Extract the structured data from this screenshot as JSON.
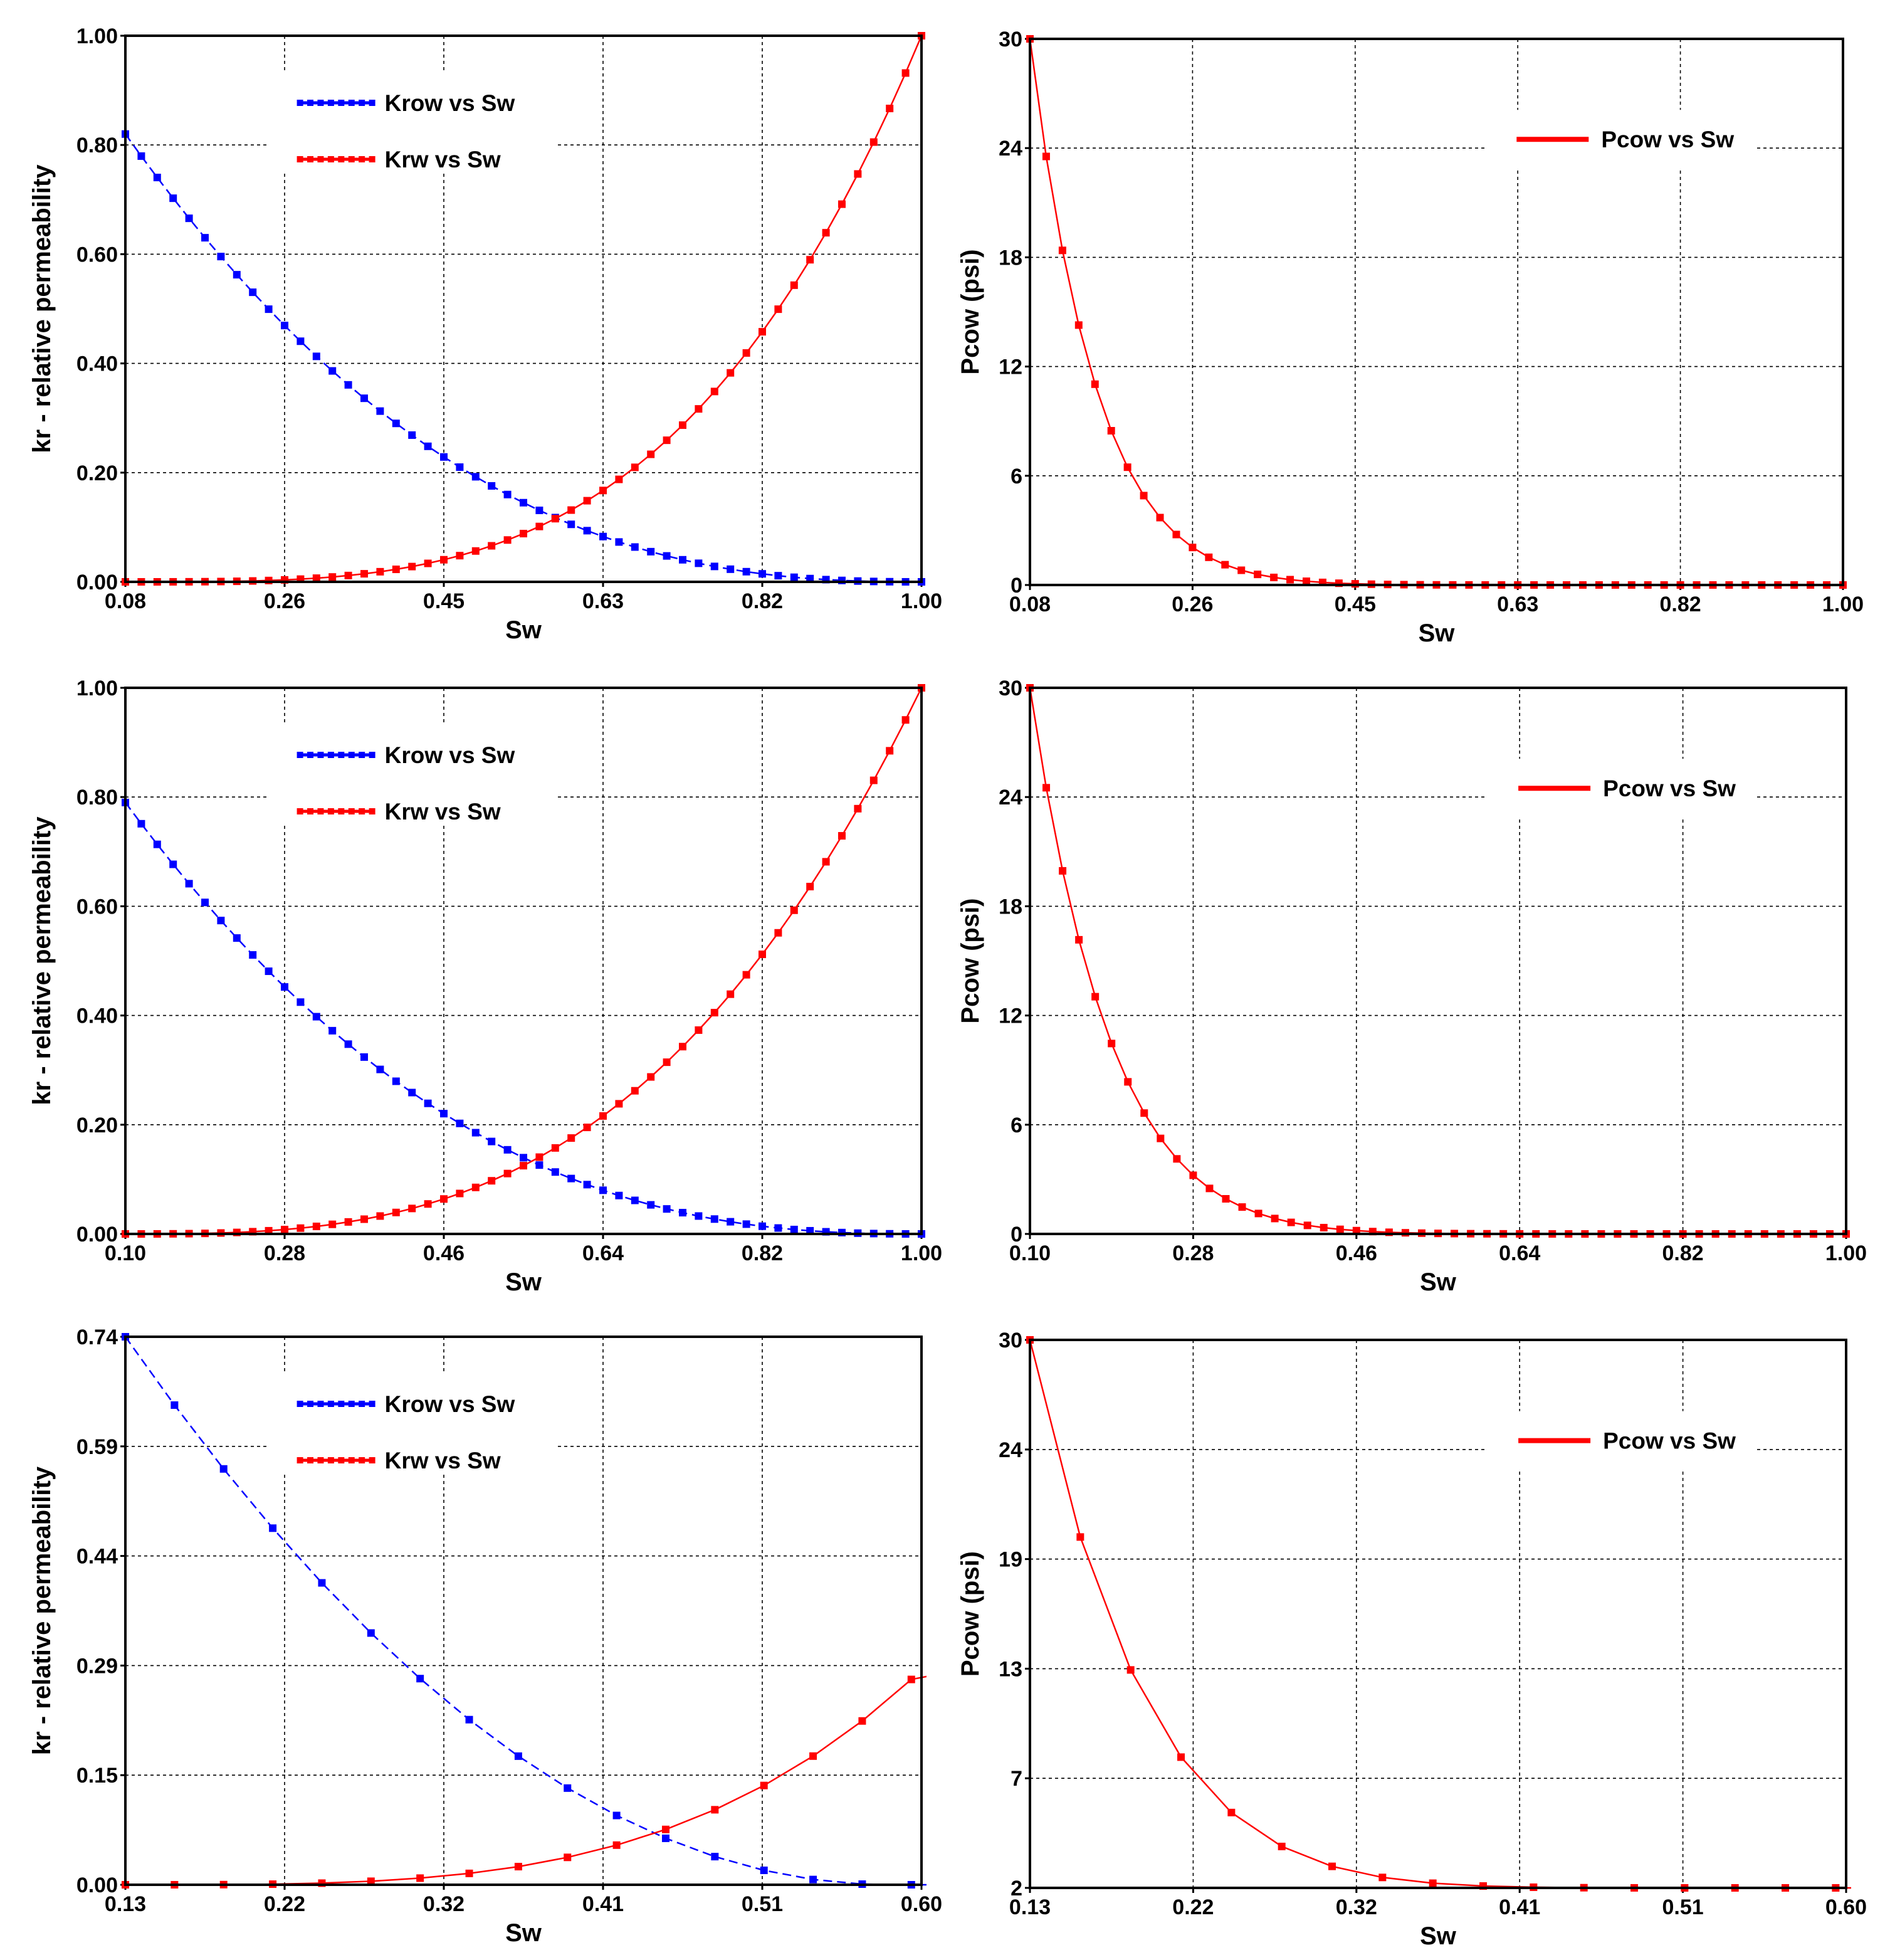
{
  "figure": {
    "colors": {
      "krow": "#0000ff",
      "krw": "#ff0000",
      "pcow": "#ff0000",
      "grid": "#000000",
      "frame": "#000000"
    }
  },
  "chart_data": [
    {
      "id": "kr1",
      "type": "line",
      "title": "",
      "xlabel": "Sw",
      "ylabel": "kr - relative permeability",
      "xlim": [
        0.08,
        1.0
      ],
      "ylim": [
        0,
        1.0
      ],
      "xticks": [
        "0.08",
        "0.26",
        "0.45",
        "0.63",
        "0.82",
        "1.00"
      ],
      "yticks": [
        "0.00",
        "0.20",
        "0.40",
        "0.60",
        "0.80",
        "1.00"
      ],
      "grid": true,
      "legend_position": "top-center",
      "series": [
        {
          "name": "Krow vs Sw",
          "color": "#0000ff",
          "dashed": true,
          "model": {
            "kind": "corey",
            "swc": 0.08,
            "swmax": 1.0,
            "k": 0.82,
            "n": 2.5,
            "side": "oil",
            "points": 51
          }
        },
        {
          "name": "Krw vs Sw",
          "color": "#ff0000",
          "dashed": false,
          "model": {
            "kind": "corey",
            "swc": 0.08,
            "swmax": 1.0,
            "k": 1.0,
            "n": 3.5,
            "side": "water",
            "points": 51
          }
        }
      ]
    },
    {
      "id": "pc1",
      "type": "line",
      "title": "",
      "xlabel": "Sw",
      "ylabel": "Pcow (psi)",
      "xlim": [
        0.08,
        1.0
      ],
      "ylim": [
        0,
        30
      ],
      "xticks": [
        "0.08",
        "0.26",
        "0.45",
        "0.63",
        "0.82",
        "1.00"
      ],
      "yticks": [
        "0",
        "6",
        "12",
        "18",
        "24",
        "30"
      ],
      "grid": true,
      "legend_position": "top-right",
      "series": [
        {
          "name": "Pcow vs Sw",
          "color": "#ff0000",
          "dashed": false,
          "model": {
            "kind": "pc",
            "swc": 0.08,
            "swmax": 1.0,
            "pmax": 30,
            "pmin": 0,
            "n": 12,
            "points": 51
          }
        }
      ]
    },
    {
      "id": "kr2",
      "type": "line",
      "title": "",
      "xlabel": "Sw",
      "ylabel": "kr - relative permeability",
      "xlim": [
        0.1,
        1.0
      ],
      "ylim": [
        0,
        1.0
      ],
      "xticks": [
        "0.10",
        "0.28",
        "0.46",
        "0.64",
        "0.82",
        "1.00"
      ],
      "yticks": [
        "0.00",
        "0.20",
        "0.40",
        "0.60",
        "0.80",
        "1.00"
      ],
      "grid": true,
      "legend_position": "top-center",
      "series": [
        {
          "name": "Krow vs Sw",
          "color": "#0000ff",
          "dashed": true,
          "model": {
            "kind": "corey",
            "swc": 0.1,
            "swmax": 1.0,
            "k": 0.79,
            "n": 2.5,
            "side": "oil",
            "points": 51
          }
        },
        {
          "name": "Krw vs Sw",
          "color": "#ff0000",
          "dashed": false,
          "model": {
            "kind": "corey",
            "swc": 0.1,
            "swmax": 1.0,
            "k": 1.0,
            "n": 3.0,
            "side": "water",
            "points": 51
          }
        }
      ]
    },
    {
      "id": "pc2",
      "type": "line",
      "title": "",
      "xlabel": "Sw",
      "ylabel": "Pcow (psi)",
      "xlim": [
        0.1,
        1.0
      ],
      "ylim": [
        0,
        30
      ],
      "xticks": [
        "0.10",
        "0.28",
        "0.46",
        "0.64",
        "0.82",
        "1.00"
      ],
      "yticks": [
        "0",
        "6",
        "12",
        "18",
        "24",
        "30"
      ],
      "grid": true,
      "legend_position": "top-right",
      "series": [
        {
          "name": "Pcow vs Sw",
          "color": "#ff0000",
          "dashed": false,
          "model": {
            "kind": "pc",
            "swc": 0.1,
            "swmax": 1.0,
            "pmax": 30,
            "pmin": 0,
            "n": 10,
            "points": 51
          }
        }
      ]
    },
    {
      "id": "kr3",
      "type": "line",
      "title": "",
      "xlabel": "Sw",
      "ylabel": "kr - relative permeability",
      "xlim": [
        0.13,
        0.6
      ],
      "ylim": [
        0,
        0.74
      ],
      "xticks": [
        "0.13",
        "0.22",
        "0.32",
        "0.41",
        "0.51",
        "0.60"
      ],
      "yticks": [
        "0.00",
        "0.15",
        "0.29",
        "0.44",
        "0.59",
        "0.74"
      ],
      "grid": true,
      "legend_position": "top-center",
      "series": [
        {
          "name": "Krow vs Sw",
          "color": "#0000ff",
          "dashed": true,
          "model": {
            "kind": "corey",
            "swc": 0.13,
            "swmax": 0.58,
            "k": 0.74,
            "n": 2.0,
            "side": "oil",
            "points": 31
          }
        },
        {
          "name": "Krw vs Sw",
          "color": "#ff0000",
          "dashed": false,
          "model": {
            "kind": "corey",
            "swc": 0.13,
            "swmax": 0.6,
            "k": 0.29,
            "n": 3.5,
            "side": "water",
            "points": 31
          }
        }
      ]
    },
    {
      "id": "pc3",
      "type": "line",
      "title": "",
      "xlabel": "Sw",
      "ylabel": "Pcow (psi)",
      "xlim": [
        0.13,
        0.6
      ],
      "ylim": [
        2,
        30
      ],
      "xticks": [
        "0.13",
        "0.22",
        "0.32",
        "0.41",
        "0.51",
        "0.60"
      ],
      "yticks": [
        "2",
        "7",
        "13",
        "19",
        "24",
        "30"
      ],
      "grid": true,
      "legend_position": "top-right",
      "series": [
        {
          "name": "Pcow vs Sw",
          "color": "#ff0000",
          "dashed": false,
          "model": {
            "kind": "pc",
            "swc": 0.13,
            "swmax": 0.6,
            "pmax": 30,
            "pmin": 2,
            "n": 7,
            "points": 31
          }
        }
      ]
    }
  ]
}
